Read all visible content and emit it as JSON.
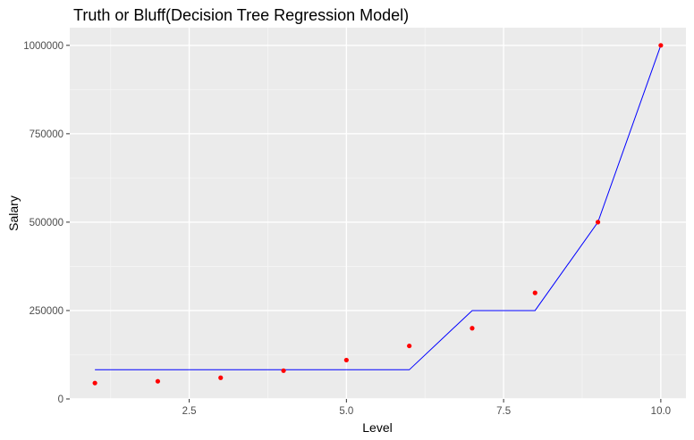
{
  "chart_data": {
    "type": "scatter",
    "title": "Truth or Bluff(Decision Tree Regression Model)",
    "xlabel": "Level",
    "ylabel": "Salary",
    "xlim": [
      0.6,
      10.4
    ],
    "ylim": [
      0,
      1050000
    ],
    "xticks": [
      2.5,
      5.0,
      7.5,
      10.0
    ],
    "xtick_labels": [
      "2.5",
      "5.0",
      "7.5",
      "10.0"
    ],
    "yticks": [
      0,
      250000,
      500000,
      750000,
      1000000
    ],
    "ytick_labels": [
      "0",
      "250000",
      "500000",
      "750000",
      "1000000"
    ],
    "grid": true,
    "series": [
      {
        "kind": "points",
        "color": "#ff0000",
        "x": [
          1,
          2,
          3,
          4,
          5,
          6,
          7,
          8,
          9,
          10
        ],
        "y": [
          45000,
          50000,
          60000,
          80000,
          110000,
          150000,
          200000,
          300000,
          500000,
          1000000
        ]
      },
      {
        "kind": "line",
        "color": "#0000ff",
        "x": [
          1,
          2,
          3,
          4,
          5,
          6,
          7,
          8,
          9,
          10
        ],
        "y": [
          82500,
          82500,
          82500,
          82500,
          82500,
          82500,
          250000,
          250000,
          500000,
          1000000
        ]
      }
    ],
    "colors": {
      "panel_background": "#ebebeb",
      "grid_major": "#ffffff",
      "grid_minor": "#f5f5f5"
    }
  }
}
